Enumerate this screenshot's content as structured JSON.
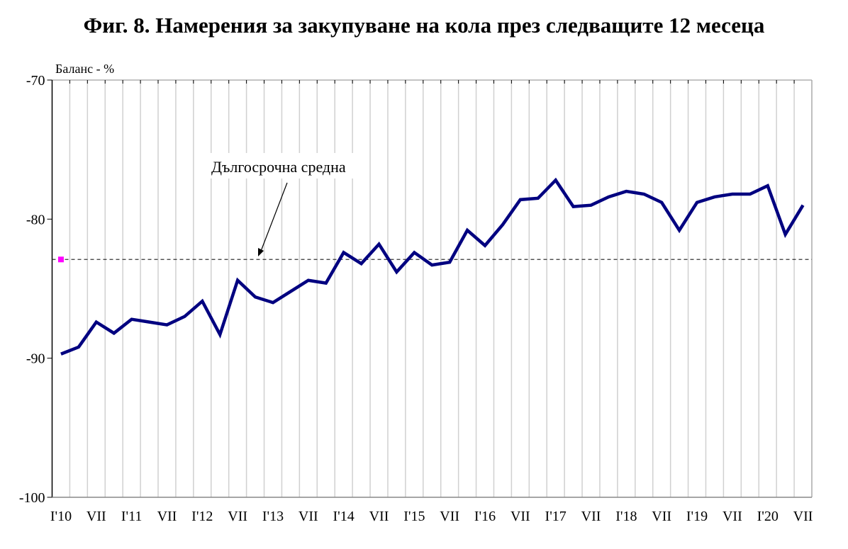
{
  "chart_data": {
    "type": "line",
    "title": "Фиг. 8. Намерения за закупуване на кола през следващите 12 месеца",
    "ylabel": "Баланс - %",
    "xlabel": "",
    "ylim": [
      -100,
      -70
    ],
    "yticks": [
      -70,
      -80,
      -90,
      -100
    ],
    "x_tick_labels": [
      "I'10",
      "VII",
      "I'11",
      "VII",
      "I'12",
      "VII",
      "I'13",
      "VII",
      "I'14",
      "VII",
      "I'15",
      "VII",
      "I'16",
      "VII",
      "I'17",
      "VII",
      "I'18",
      "VII",
      "I'19",
      "VII",
      "I'20",
      "VII"
    ],
    "grid": "vertical",
    "series": [
      {
        "name": "Намерения за закупуване на кола",
        "color": "#000080",
        "values": [
          -89.7,
          -89.2,
          -87.4,
          -88.2,
          -87.2,
          -87.4,
          -87.6,
          -87.0,
          -85.9,
          -88.3,
          -84.4,
          -85.6,
          -86.0,
          -85.2,
          -84.4,
          -84.6,
          -82.4,
          -83.2,
          -81.8,
          -83.8,
          -82.4,
          -83.3,
          -83.1,
          -80.8,
          -81.9,
          -80.4,
          -78.6,
          -78.5,
          -77.2,
          -79.1,
          -79.0,
          -78.4,
          -78.0,
          -78.2,
          -78.8,
          -80.8,
          -78.8,
          -78.4,
          -78.2,
          -78.2,
          -77.6,
          -81.1,
          -79.0
        ]
      }
    ],
    "long_term_average": {
      "label": "Дългосрочна средна",
      "value": -82.9,
      "color": "#333333",
      "marker_color": "#ff00ff"
    }
  }
}
